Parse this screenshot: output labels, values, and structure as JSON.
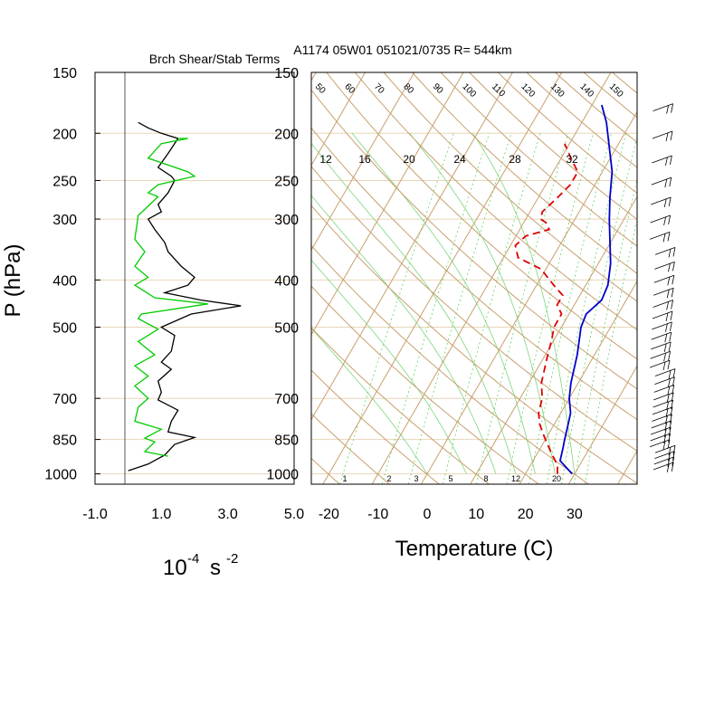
{
  "chart_data": [
    {
      "type": "line",
      "title": "Brch Shear/Stab Terms",
      "ylabel": "P (hPa)",
      "xlabel": "10",
      "xlabel_exp": "-4",
      "xlabel_unit": "s",
      "xlabel_unit_exp": "-2",
      "y_scale": "log",
      "ylim": [
        1050,
        150
      ],
      "xlim": [
        -1.0,
        5.0
      ],
      "x_ticks": [
        -1.0,
        1.0,
        3.0,
        5.0
      ],
      "x_tick_labels": [
        "-1.0",
        "1.0",
        "3.0",
        "5.0"
      ],
      "y_ticks": [
        150,
        200,
        250,
        300,
        400,
        500,
        700,
        850,
        1000
      ],
      "y_tick_labels": [
        "150",
        "200",
        "250",
        "300",
        "400",
        "500",
        "700",
        "850",
        "1000"
      ],
      "grid": "horizontal at mandatory levels",
      "series": [
        {
          "color": "#000000",
          "points": [
            [
              0.3,
              190
            ],
            [
              0.6,
              195
            ],
            [
              1.0,
              200
            ],
            [
              1.5,
              205
            ],
            [
              1.2,
              220
            ],
            [
              0.9,
              235
            ],
            [
              1.3,
              245
            ],
            [
              1.4,
              250
            ],
            [
              1.2,
              265
            ],
            [
              0.9,
              280
            ],
            [
              1.0,
              290
            ],
            [
              0.6,
              300
            ],
            [
              0.8,
              315
            ],
            [
              1.1,
              335
            ],
            [
              1.2,
              350
            ],
            [
              1.6,
              375
            ],
            [
              2.0,
              395
            ],
            [
              1.8,
              410
            ],
            [
              1.1,
              425
            ],
            [
              2.2,
              440
            ],
            [
              3.4,
              452
            ],
            [
              1.9,
              470
            ],
            [
              1.0,
              500
            ],
            [
              1.4,
              520
            ],
            [
              1.3,
              560
            ],
            [
              1.0,
              590
            ],
            [
              1.3,
              610
            ],
            [
              0.9,
              645
            ],
            [
              1.0,
              680
            ],
            [
              0.9,
              705
            ],
            [
              1.5,
              740
            ],
            [
              1.3,
              780
            ],
            [
              1.2,
              820
            ],
            [
              2.0,
              842
            ],
            [
              1.4,
              870
            ],
            [
              1.1,
              915
            ],
            [
              0.6,
              955
            ],
            [
              0.0,
              985
            ]
          ]
        },
        {
          "color": "#00cc00",
          "points": [
            [
              1.5,
              205
            ],
            [
              1.8,
              205
            ],
            [
              1.0,
              210
            ],
            [
              0.6,
              225
            ],
            [
              1.8,
              240
            ],
            [
              2.0,
              245
            ],
            [
              0.9,
              255
            ],
            [
              0.6,
              265
            ],
            [
              0.9,
              270
            ],
            [
              0.3,
              295
            ],
            [
              0.2,
              330
            ],
            [
              0.5,
              350
            ],
            [
              0.2,
              375
            ],
            [
              0.6,
              395
            ],
            [
              0.2,
              410
            ],
            [
              0.8,
              435
            ],
            [
              2.4,
              448
            ],
            [
              0.4,
              470
            ],
            [
              0.3,
              480
            ],
            [
              0.9,
              505
            ],
            [
              0.3,
              535
            ],
            [
              0.8,
              570
            ],
            [
              0.2,
              600
            ],
            [
              0.6,
              630
            ],
            [
              0.2,
              660
            ],
            [
              0.6,
              700
            ],
            [
              0.3,
              730
            ],
            [
              0.2,
              780
            ],
            [
              1.0,
              810
            ],
            [
              0.5,
              845
            ],
            [
              0.8,
              860
            ],
            [
              0.5,
              900
            ],
            [
              1.2,
              920
            ]
          ]
        }
      ]
    },
    {
      "type": "line",
      "title": "A1174 05W01 051021/0735 R= 544km",
      "xlabel": "Temperature (C)",
      "y_scale": "log",
      "ylim": [
        1050,
        150
      ],
      "xlim": [
        -23,
        43
      ],
      "x_ticks": [
        -20,
        -10,
        0,
        10,
        20,
        30
      ],
      "x_tick_labels": [
        "-20",
        "-10",
        "0",
        "10",
        "20",
        "30"
      ],
      "y_ticks": [
        150,
        200,
        250,
        300,
        400,
        500,
        700,
        850,
        1000
      ],
      "y_tick_labels": [
        "150",
        "200",
        "250",
        "300",
        "400",
        "500",
        "700",
        "850",
        "1000"
      ],
      "skew_note": "skew-T log-p diagram with isotherms, dry adiabats, moist adiabats and mixing-ratio lines",
      "isotherm_labels": [],
      "dry_adiabat_labels": [
        "50",
        "60",
        "70",
        "80",
        "90",
        "100",
        "110",
        "120",
        "130",
        "140",
        "150"
      ],
      "mixing_ratio_top_labels": [
        "12",
        "16",
        "20",
        "24",
        "28",
        "32"
      ],
      "mixing_ratio_bottom_labels": [
        "1",
        "2",
        "3",
        "5",
        "8",
        "12",
        "20"
      ],
      "series": [
        {
          "color": "#0000cc",
          "style": "solid",
          "points": [
            [
              29.5,
              1000
            ],
            [
              25.5,
              940
            ],
            [
              24.5,
              880
            ],
            [
              24,
              855
            ],
            [
              23,
              800
            ],
            [
              22,
              750
            ],
            [
              20,
              700
            ],
            [
              18.5,
              650
            ],
            [
              16.5,
              570
            ],
            [
              14,
              500
            ],
            [
              13.5,
              470
            ],
            [
              15,
              440
            ],
            [
              14.5,
              410
            ],
            [
              12.5,
              370
            ],
            [
              9.5,
              330
            ],
            [
              7,
              300
            ],
            [
              4.5,
              270
            ],
            [
              2,
              240
            ],
            [
              -2,
              210
            ],
            [
              -5,
              190
            ],
            [
              -8,
              175
            ]
          ]
        },
        {
          "color": "#dd0000",
          "style": "dashed",
          "points": [
            [
              26.5,
              1000
            ],
            [
              25.5,
              960
            ],
            [
              22.5,
              900
            ],
            [
              19.5,
              840
            ],
            [
              17,
              790
            ],
            [
              15.5,
              750
            ],
            [
              14.5,
              700
            ],
            [
              12.5,
              650
            ],
            [
              10.5,
              570
            ],
            [
              9.5,
              530
            ],
            [
              8.5,
              500
            ],
            [
              8.5,
              470
            ],
            [
              6.5,
              450
            ],
            [
              6.5,
              430
            ],
            [
              3.5,
              410
            ],
            [
              -1,
              380
            ],
            [
              -7,
              360
            ],
            [
              -9,
              340
            ],
            [
              -8,
              325
            ],
            [
              -4,
              315
            ],
            [
              -5.5,
              305
            ],
            [
              -7,
              300
            ],
            [
              -7.5,
              290
            ],
            [
              -6,
              270
            ],
            [
              -5,
              255
            ],
            [
              -5,
              240
            ],
            [
              -8,
              225
            ],
            [
              -11,
              210
            ]
          ]
        }
      ],
      "wind_barbs_present": true
    }
  ]
}
